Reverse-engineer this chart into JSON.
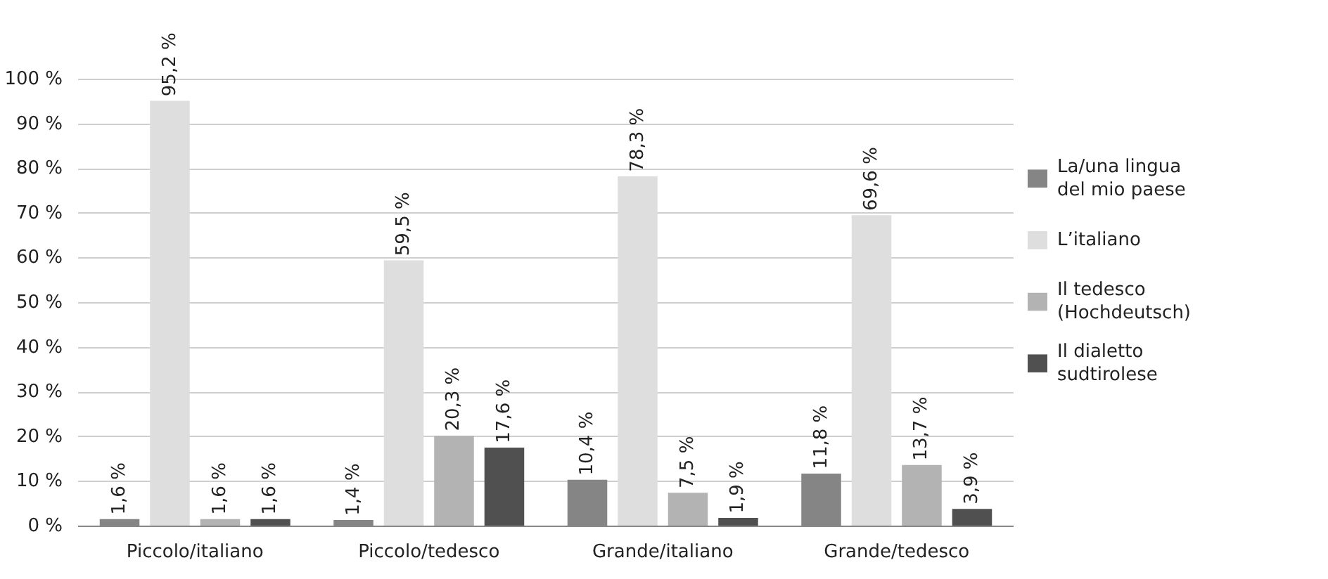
{
  "chart_data": {
    "type": "bar",
    "categories": [
      "Piccolo/italiano",
      "Piccolo/tedesco",
      "Grande/italiano",
      "Grande/tedesco"
    ],
    "series": [
      {
        "name": "La/una lingua del mio paese",
        "color": "#858585",
        "values": [
          1.6,
          1.4,
          10.4,
          11.8
        ],
        "value_labels": [
          "1,6 %",
          "1,4 %",
          "10,4 %",
          "11,8 %"
        ]
      },
      {
        "name": "L’italiano",
        "color": "#dedede",
        "values": [
          95.2,
          59.5,
          78.3,
          69.6
        ],
        "value_labels": [
          "95,2 %",
          "59,5 %",
          "78,3 %",
          "69,6 %"
        ]
      },
      {
        "name": "Il tedesco (Hochdeutsch)",
        "color": "#b3b3b3",
        "values": [
          1.6,
          20.3,
          7.5,
          13.7
        ],
        "value_labels": [
          "1,6 %",
          "20,3 %",
          "7,5 %",
          "13,7 %"
        ]
      },
      {
        "name": "Il dialetto sudtirolese",
        "color": "#505050",
        "values": [
          1.6,
          17.6,
          1.9,
          3.9
        ],
        "value_labels": [
          "1,6 %",
          "17,6 %",
          "1,9 %",
          "3,9 %"
        ]
      }
    ],
    "ylim": [
      0,
      100
    ],
    "yticks": [
      {
        "value": 0,
        "label": "0 %"
      },
      {
        "value": 10,
        "label": "10 %"
      },
      {
        "value": 20,
        "label": "20 %"
      },
      {
        "value": 30,
        "label": "30 %"
      },
      {
        "value": 40,
        "label": "40 %"
      },
      {
        "value": 50,
        "label": "50 %"
      },
      {
        "value": 60,
        "label": "60 %"
      },
      {
        "value": 70,
        "label": "70 %"
      },
      {
        "value": 80,
        "label": "80 %"
      },
      {
        "value": 90,
        "label": "90 %"
      },
      {
        "value": 100,
        "label": "100 %"
      }
    ],
    "grid": "y",
    "legend": "right"
  }
}
